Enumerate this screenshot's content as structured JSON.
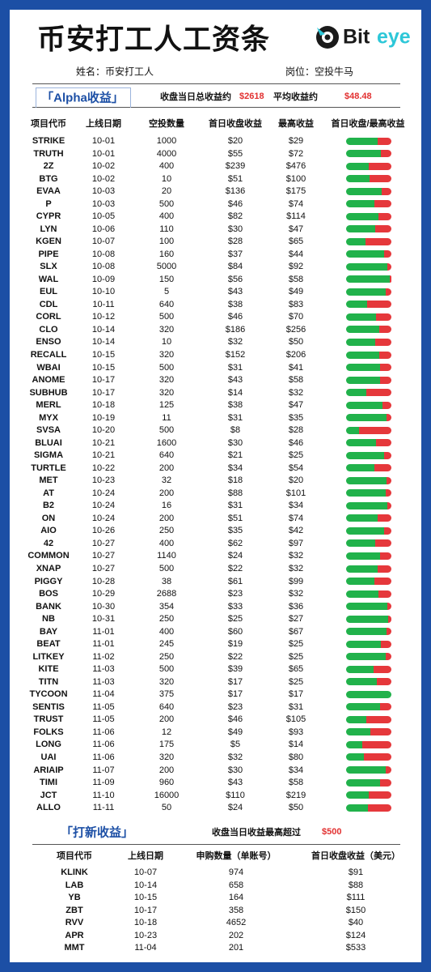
{
  "header": {
    "title": "币安打工人工资条",
    "logo": {
      "part1": "Bit",
      "part2": "eye"
    },
    "name": "姓名：币安打工人",
    "position": "岗位：空投牛马"
  },
  "alpha": {
    "title": "「Alpha收益」",
    "summary": [
      {
        "label": "收盘当日总收益约",
        "value": "$2618"
      },
      {
        "label": "平均收益约",
        "value": "$48.48"
      }
    ],
    "columns": [
      "项目代币",
      "上线日期",
      "空投数量",
      "首日收盘收益",
      "最高收益",
      "首日收盘/最高收益"
    ],
    "rows": [
      [
        "STRIKE",
        "10-01",
        1000,
        "$20",
        "$29"
      ],
      [
        "TRUTH",
        "10-01",
        4000,
        "$55",
        "$72"
      ],
      [
        "2Z",
        "10-02",
        400,
        "$239",
        "$476"
      ],
      [
        "BTG",
        "10-02",
        10,
        "$51",
        "$100"
      ],
      [
        "EVAA",
        "10-03",
        20,
        "$136",
        "$175"
      ],
      [
        "P",
        "10-03",
        500,
        "$46",
        "$74"
      ],
      [
        "CYPR",
        "10-05",
        400,
        "$82",
        "$114"
      ],
      [
        "LYN",
        "10-06",
        110,
        "$30",
        "$47"
      ],
      [
        "KGEN",
        "10-07",
        100,
        "$28",
        "$65"
      ],
      [
        "PIPE",
        "10-08",
        160,
        "$37",
        "$44"
      ],
      [
        "SLX",
        "10-08",
        5000,
        "$84",
        "$92"
      ],
      [
        "WAL",
        "10-09",
        150,
        "$56",
        "$58"
      ],
      [
        "EUL",
        "10-10",
        5,
        "$43",
        "$49"
      ],
      [
        "CDL",
        "10-11",
        640,
        "$38",
        "$83"
      ],
      [
        "CORL",
        "10-12",
        500,
        "$46",
        "$70"
      ],
      [
        "CLO",
        "10-14",
        320,
        "$186",
        "$256"
      ],
      [
        "ENSO",
        "10-14",
        10,
        "$32",
        "$50"
      ],
      [
        "RECALL",
        "10-15",
        320,
        "$152",
        "$206"
      ],
      [
        "WBAI",
        "10-15",
        500,
        "$31",
        "$41"
      ],
      [
        "ANOME",
        "10-17",
        320,
        "$43",
        "$58"
      ],
      [
        "SUBHUB",
        "10-17",
        320,
        "$14",
        "$32"
      ],
      [
        "MERL",
        "10-18",
        125,
        "$38",
        "$47"
      ],
      [
        "MYX",
        "10-19",
        11,
        "$31",
        "$35"
      ],
      [
        "SVSA",
        "10-20",
        500,
        "$8",
        "$28"
      ],
      [
        "BLUAI",
        "10-21",
        1600,
        "$30",
        "$46"
      ],
      [
        "SIGMA",
        "10-21",
        640,
        "$21",
        "$25"
      ],
      [
        "TURTLE",
        "10-22",
        200,
        "$34",
        "$54"
      ],
      [
        "MET",
        "10-23",
        32,
        "$18",
        "$20"
      ],
      [
        "AT",
        "10-24",
        200,
        "$88",
        "$101"
      ],
      [
        "B2",
        "10-24",
        16,
        "$31",
        "$34"
      ],
      [
        "ON",
        "10-24",
        200,
        "$51",
        "$74"
      ],
      [
        "AIO",
        "10-26",
        250,
        "$35",
        "$42"
      ],
      [
        "42",
        "10-27",
        400,
        "$62",
        "$97"
      ],
      [
        "COMMON",
        "10-27",
        1140,
        "$24",
        "$32"
      ],
      [
        "XNAP",
        "10-27",
        500,
        "$22",
        "$32"
      ],
      [
        "PIGGY",
        "10-28",
        38,
        "$61",
        "$99"
      ],
      [
        "BOS",
        "10-29",
        2688,
        "$23",
        "$32"
      ],
      [
        "BANK",
        "10-30",
        354,
        "$33",
        "$36"
      ],
      [
        "NB",
        "10-31",
        250,
        "$25",
        "$27"
      ],
      [
        "BAY",
        "11-01",
        400,
        "$60",
        "$67"
      ],
      [
        "BEAT",
        "11-01",
        245,
        "$19",
        "$25"
      ],
      [
        "LITKEY",
        "11-02",
        250,
        "$22",
        "$25"
      ],
      [
        "KITE",
        "11-03",
        500,
        "$39",
        "$65"
      ],
      [
        "TITN",
        "11-03",
        320,
        "$17",
        "$25"
      ],
      [
        "TYCOON",
        "11-04",
        375,
        "$17",
        "$17"
      ],
      [
        "SENTIS",
        "11-05",
        640,
        "$23",
        "$31"
      ],
      [
        "TRUST",
        "11-05",
        200,
        "$46",
        "$105"
      ],
      [
        "FOLKS",
        "11-06",
        12,
        "$49",
        "$93"
      ],
      [
        "LONG",
        "11-06",
        175,
        "$5",
        "$14"
      ],
      [
        "UAI",
        "11-06",
        320,
        "$32",
        "$80"
      ],
      [
        "ARIAIP",
        "11-07",
        200,
        "$30",
        "$34"
      ],
      [
        "TIMI",
        "11-09",
        960,
        "$43",
        "$58"
      ],
      [
        "JCT",
        "11-10",
        16000,
        "$110",
        "$219"
      ],
      [
        "ALLO",
        "11-11",
        50,
        "$24",
        "$50"
      ]
    ]
  },
  "ipo": {
    "title": "「打新收益」",
    "summary": {
      "label": "收盘当日收益最高超过",
      "value": "$500"
    },
    "columns": [
      "项目代币",
      "上线日期",
      "申购数量（单账号）",
      "首日收盘收益（美元）"
    ],
    "rows": [
      [
        "KLINK",
        "10-07",
        974,
        "$91"
      ],
      [
        "LAB",
        "10-14",
        658,
        "$88"
      ],
      [
        "YB",
        "10-15",
        164,
        "$111"
      ],
      [
        "ZBT",
        "10-17",
        358,
        "$150"
      ],
      [
        "RVV",
        "10-18",
        4652,
        "$40"
      ],
      [
        "APR",
        "10-23",
        202,
        "$124"
      ],
      [
        "MMT",
        "11-04",
        201,
        "$533"
      ]
    ]
  }
}
